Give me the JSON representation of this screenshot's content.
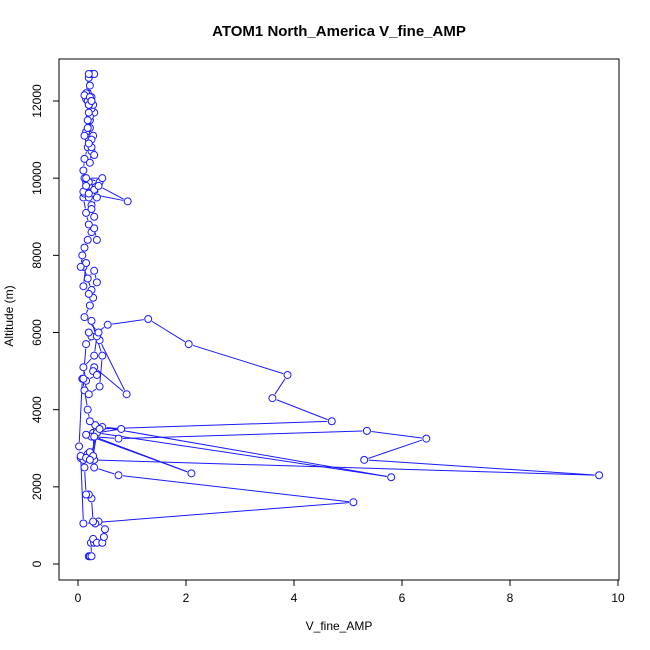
{
  "chart_data": {
    "type": "scatter",
    "title": "ATOM1 North_America V_fine_AMP",
    "xlabel": "V_fine_AMP",
    "ylabel": "Altitude (m)",
    "xlim": [
      0,
      10
    ],
    "ylim": [
      0,
      12500
    ],
    "x_ticks": [
      0,
      2,
      4,
      6,
      8,
      10
    ],
    "y_ticks": [
      0,
      2000,
      4000,
      6000,
      8000,
      10000,
      12000
    ],
    "style": "points connected by lines (type b)",
    "color": "#1a1aff",
    "grid": false,
    "series": [
      {
        "x": [
          0.2,
          0.22,
          0.25,
          0.24,
          0.3,
          0.28,
          0.35,
          0.45,
          0.48,
          0.5,
          0.38,
          0.32,
          0.28,
          0.25,
          0.2,
          0.15,
          0.12,
          0.05,
          0.1,
          0.18,
          0.22,
          0.3,
          0.28,
          0.35,
          0.32,
          0.22,
          0.18,
          0.12,
          0.08,
          0.02,
          0.05,
          0.1,
          5.1,
          0.75,
          0.3,
          0.15,
          0.28,
          0.35,
          5.8,
          0.45,
          0.8,
          0.35,
          0.22,
          9.65,
          5.3,
          6.45,
          5.35,
          0.75,
          0.25,
          0.15,
          2.1,
          0.3,
          0.4,
          4.7,
          3.6,
          3.88,
          2.05,
          1.3,
          0.55,
          0.25,
          0.2,
          0.4,
          0.9,
          0.3,
          0.28,
          0.35,
          0.15,
          0.1,
          0.3,
          0.35,
          0.25,
          0.45,
          0.4,
          0.2,
          0.1,
          0.15,
          0.38,
          0.12,
          0.22,
          0.28,
          0.25,
          0.1,
          0.18,
          0.3,
          0.35,
          0.2,
          0.1,
          0.15,
          0.08,
          0.05,
          0.12,
          0.18,
          0.25,
          0.35,
          0.3,
          0.2,
          0.15,
          0.1,
          0.12,
          0.18,
          0.22,
          0.2,
          0.15,
          0.12,
          0.2,
          0.25,
          0.3,
          0.4,
          0.15,
          0.45,
          0.1,
          0.2,
          0.25,
          0.3,
          0.25,
          0.35,
          0.38,
          0.92,
          0.2,
          0.15,
          0.1,
          0.12,
          0.18,
          0.25,
          0.22,
          0.3,
          0.25,
          0.2,
          0.15,
          0.22,
          0.28,
          0.25,
          0.2,
          0.12,
          0.18,
          0.22,
          0.3,
          0.25,
          0.22,
          0.18,
          0.2,
          0.25,
          0.22,
          0.28,
          0.2,
          0.18,
          0.15,
          0.2,
          0.25,
          0.22,
          0.2,
          0.25,
          0.3,
          0.2,
          0.15,
          0.12,
          0.18,
          0.22,
          0.25,
          0.2,
          0.25
        ],
        "y": [
          200,
          200,
          200,
          550,
          550,
          650,
          550,
          550,
          700,
          900,
          1100,
          1050,
          1100,
          1700,
          1800,
          1800,
          2500,
          2750,
          2700,
          2850,
          2900,
          2700,
          3400,
          3500,
          3600,
          3700,
          4000,
          4500,
          4800,
          3050,
          2800,
          1050,
          1600,
          2300,
          2500,
          2750,
          2800,
          3400,
          2250,
          3550,
          3500,
          3400,
          2700,
          2300,
          2700,
          3250,
          3450,
          3250,
          3300,
          3350,
          2350,
          3300,
          3500,
          3700,
          4300,
          4900,
          5700,
          6350,
          6200,
          5900,
          6000,
          5800,
          4400,
          5100,
          5000,
          4900,
          4750,
          5100,
          5400,
          5900,
          6300,
          5400,
          4600,
          4400,
          4800,
          5700,
          6000,
          6400,
          6700,
          6900,
          7100,
          7700,
          7400,
          7600,
          7300,
          7000,
          7200,
          7800,
          8000,
          7700,
          8200,
          8400,
          8600,
          8400,
          8700,
          8800,
          9100,
          9500,
          9600,
          9700,
          9650,
          9800,
          9900,
          10000,
          9900,
          9600,
          9700,
          9900,
          10000,
          10000,
          9650,
          9500,
          9300,
          9000,
          9200,
          9500,
          9800,
          9400,
          9600,
          9800,
          10200,
          10500,
          10800,
          10700,
          10400,
          10600,
          10800,
          11000,
          11200,
          11300,
          11100,
          11000,
          10900,
          11100,
          11300,
          11500,
          11700,
          11800,
          11600,
          11500,
          11700,
          11900,
          12000,
          11900,
          12100,
          12200,
          12050,
          11900,
          12100,
          12400,
          12600,
          12700,
          12700,
          12700,
          12200,
          12150,
          12000,
          12100,
          12000,
          11900,
          12000
        ]
      }
    ]
  }
}
